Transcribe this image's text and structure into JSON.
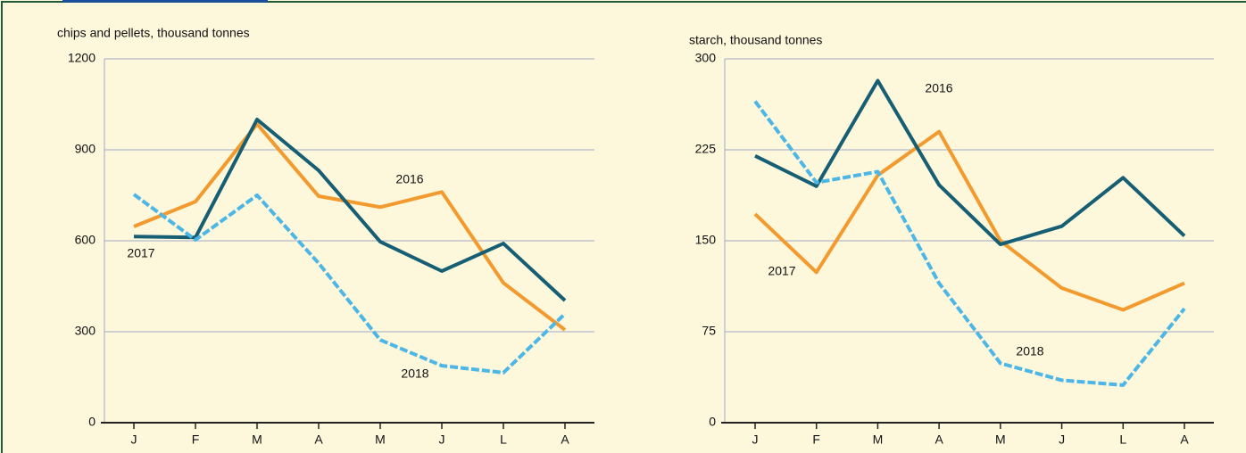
{
  "chart_data": [
    {
      "type": "line",
      "y_label": "chips and pellets, thousand tonnes",
      "categories": [
        "J",
        "F",
        "M",
        "A",
        "M",
        "J",
        "L",
        "A"
      ],
      "ylim": [
        0,
        1200
      ],
      "yticks": [
        0,
        300,
        600,
        900,
        1200
      ],
      "grid": true,
      "series": [
        {
          "name": "2016",
          "color": "#f39a2e",
          "values": [
            647,
            729,
            985,
            747,
            711,
            761,
            461,
            306
          ]
        },
        {
          "name": "2017",
          "color": "#165e73",
          "values": [
            614,
            611,
            1000,
            832,
            597,
            500,
            591,
            403
          ]
        },
        {
          "name": "2018",
          "color": "#4cb6e6",
          "values": [
            753,
            603,
            750,
            526,
            273,
            188,
            165,
            359
          ]
        }
      ]
    },
    {
      "type": "line",
      "y_label": "starch, thousand tonnes",
      "categories": [
        "J",
        "F",
        "M",
        "A",
        "M",
        "J",
        "L",
        "A"
      ],
      "ylim": [
        0,
        300
      ],
      "yticks": [
        0,
        75,
        150,
        225,
        300
      ],
      "grid": true,
      "series": [
        {
          "name": "2016",
          "color": "#f39a2e",
          "values": [
            172,
            124,
            204,
            240,
            150,
            111,
            93,
            115
          ]
        },
        {
          "name": "2017",
          "color": "#165e73",
          "values": [
            220,
            195,
            282,
            196,
            147,
            162,
            202,
            154
          ]
        },
        {
          "name": "2018",
          "color": "#4cb6e6",
          "values": [
            265,
            198,
            207,
            115,
            49,
            35,
            31,
            94
          ]
        }
      ]
    }
  ]
}
